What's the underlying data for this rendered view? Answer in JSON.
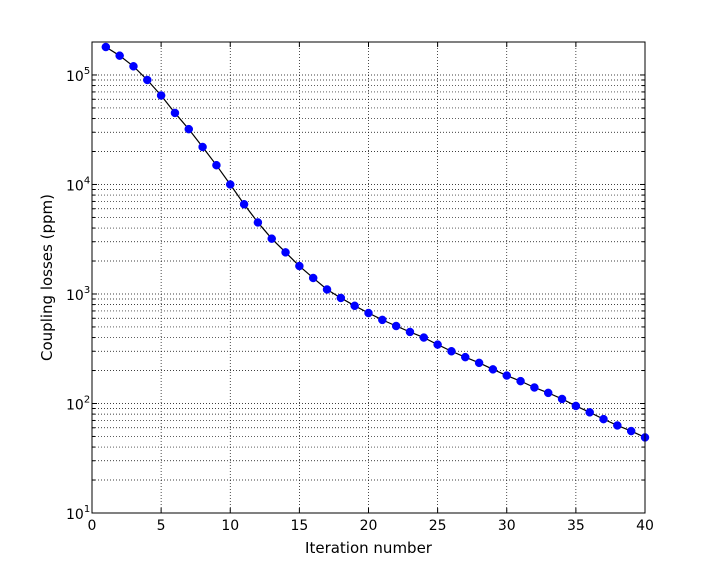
{
  "chart_data": {
    "type": "line",
    "xlabel": "Iteration number",
    "ylabel": "Coupling losses (ppm)",
    "yscale": "log",
    "xlim": [
      0,
      40
    ],
    "ylim": [
      10,
      200000
    ],
    "grid": true,
    "line_color": "#000000",
    "marker_color": "#0000ff",
    "x_ticks": [
      0,
      5,
      10,
      15,
      20,
      25,
      30,
      35,
      40
    ],
    "x_tick_labels": [
      "0",
      "5",
      "10",
      "15",
      "20",
      "25",
      "30",
      "35",
      "40"
    ],
    "y_ticks": [
      10,
      100,
      1000,
      10000,
      100000
    ],
    "y_tick_bases": [
      "10",
      "10",
      "10",
      "10",
      "10"
    ],
    "y_tick_exponents": [
      "1",
      "2",
      "3",
      "4",
      "5"
    ],
    "series": [
      {
        "x": [
          1,
          2,
          3,
          4,
          5,
          6,
          7,
          8,
          9,
          10,
          11,
          12,
          13,
          14,
          15,
          16,
          17,
          18,
          19,
          20,
          21,
          22,
          23,
          24,
          25,
          26,
          27,
          28,
          29,
          30,
          31,
          32,
          33,
          34,
          35,
          36,
          37,
          38,
          39,
          40
        ],
        "y": [
          180000,
          150000,
          120000,
          90000,
          65000,
          45000,
          32000,
          22000,
          15000,
          10000,
          6600,
          4500,
          3200,
          2400,
          1800,
          1400,
          1100,
          920,
          780,
          670,
          580,
          510,
          450,
          400,
          345,
          300,
          265,
          235,
          205,
          180,
          160,
          140,
          125,
          110,
          95,
          83,
          72,
          63,
          56,
          49
        ]
      }
    ]
  }
}
